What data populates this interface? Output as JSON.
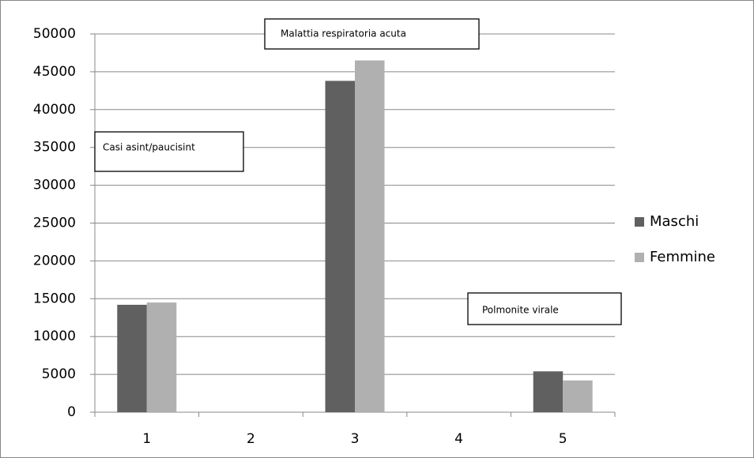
{
  "chart_data": {
    "type": "bar",
    "categories": [
      "1",
      "2",
      "3",
      "4",
      "5"
    ],
    "series": [
      {
        "name": "Maschi",
        "color": "#606060",
        "values": [
          14200,
          0,
          43800,
          0,
          5400
        ]
      },
      {
        "name": "Femmine",
        "color": "#b0b0b0",
        "values": [
          14500,
          0,
          46500,
          0,
          4200
        ]
      }
    ],
    "ylim": [
      0,
      50000
    ],
    "yticks": [
      0,
      5000,
      10000,
      15000,
      20000,
      25000,
      30000,
      35000,
      40000,
      45000,
      50000
    ],
    "grid": true,
    "legend": "right",
    "annotations": [
      "Casi asint/paucisint",
      "Malattia respiratoria acuta",
      "Polmonite virale"
    ]
  }
}
